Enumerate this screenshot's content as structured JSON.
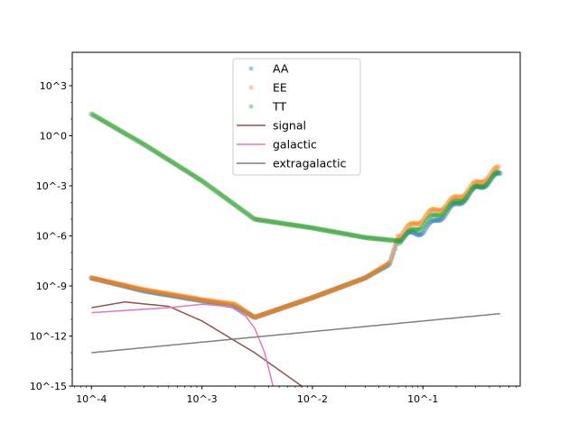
{
  "chart_data": {
    "type": "scatter",
    "title": "",
    "xlabel": "",
    "ylabel": "",
    "xscale": "log",
    "yscale": "log",
    "xlim": [
      6.7e-05,
      0.76
    ],
    "ylim": [
      1e-15,
      100000.0
    ],
    "grid": false,
    "legend_position": "top-center",
    "x_ticks": [
      {
        "v": 0.0001,
        "label": "10^-4"
      },
      {
        "v": 0.001,
        "label": "10^-3"
      },
      {
        "v": 0.01,
        "label": "10^-2"
      },
      {
        "v": 0.1,
        "label": "10^-1"
      }
    ],
    "y_ticks": [
      {
        "v": 1000.0,
        "label": "10^3"
      },
      {
        "v": 1.0,
        "label": "10^0"
      },
      {
        "v": 0.001,
        "label": "10^-3"
      },
      {
        "v": 1e-06,
        "label": "10^-6"
      },
      {
        "v": 1e-09,
        "label": "10^-9"
      },
      {
        "v": 1e-12,
        "label": "10^-12"
      },
      {
        "v": 1e-15,
        "label": "10^-15"
      }
    ],
    "series": [
      {
        "name": "AA",
        "kind": "points",
        "color": "#1f77b4",
        "x": [
          0.0001,
          0.0003,
          0.001,
          0.002,
          0.003,
          0.01,
          0.03,
          0.05,
          0.06,
          0.1,
          0.2,
          0.3,
          0.5
        ],
        "y": [
          3e-09,
          5e-10,
          1.3e-10,
          6e-11,
          1.3e-11,
          2e-10,
          3e-09,
          2e-08,
          7e-07,
          2e-06,
          7e-05,
          0.0006,
          0.005
        ]
      },
      {
        "name": "EE",
        "kind": "points",
        "color": "#ff7f0e",
        "x": [
          0.0001,
          0.0003,
          0.001,
          0.002,
          0.003,
          0.01,
          0.03,
          0.05,
          0.06,
          0.11,
          0.18,
          0.29,
          0.48
        ],
        "y": [
          3e-09,
          6e-10,
          1.5e-10,
          8e-11,
          1.3e-11,
          2e-10,
          3e-09,
          2.5e-08,
          1.1e-06,
          1.8e-05,
          0.00011,
          0.001,
          0.01
        ]
      },
      {
        "name": "TT",
        "kind": "points",
        "color": "#2ca02c",
        "x": [
          0.0001,
          0.0003,
          0.001,
          0.003,
          0.01,
          0.03,
          0.06,
          0.11,
          0.18,
          0.29,
          0.48
        ],
        "y": [
          20,
          0.3,
          0.002,
          1e-05,
          3e-06,
          8e-07,
          5e-07,
          8e-06,
          6e-05,
          0.00056,
          0.005
        ]
      },
      {
        "name": "signal",
        "kind": "line",
        "color": "#8c564b",
        "x": [
          0.0001,
          0.0002,
          0.0005,
          0.001,
          0.003,
          0.008
        ],
        "y": [
          5e-11,
          1.1e-10,
          6e-11,
          8e-12,
          1e-13,
          1e-15
        ]
      },
      {
        "name": "galactic",
        "kind": "line",
        "color": "#e377c2",
        "x": [
          0.0001,
          0.0005,
          0.001,
          0.0018,
          0.0025,
          0.003,
          0.0037,
          0.0044
        ],
        "y": [
          2.5e-11,
          5e-11,
          8e-11,
          6e-11,
          1.5e-11,
          3e-12,
          1e-13,
          1e-15
        ]
      },
      {
        "name": "extragalactic",
        "kind": "line",
        "color": "#7f7f7f",
        "x": [
          0.0001,
          0.5
        ],
        "y": [
          1e-13,
          2.2e-11
        ]
      }
    ]
  }
}
